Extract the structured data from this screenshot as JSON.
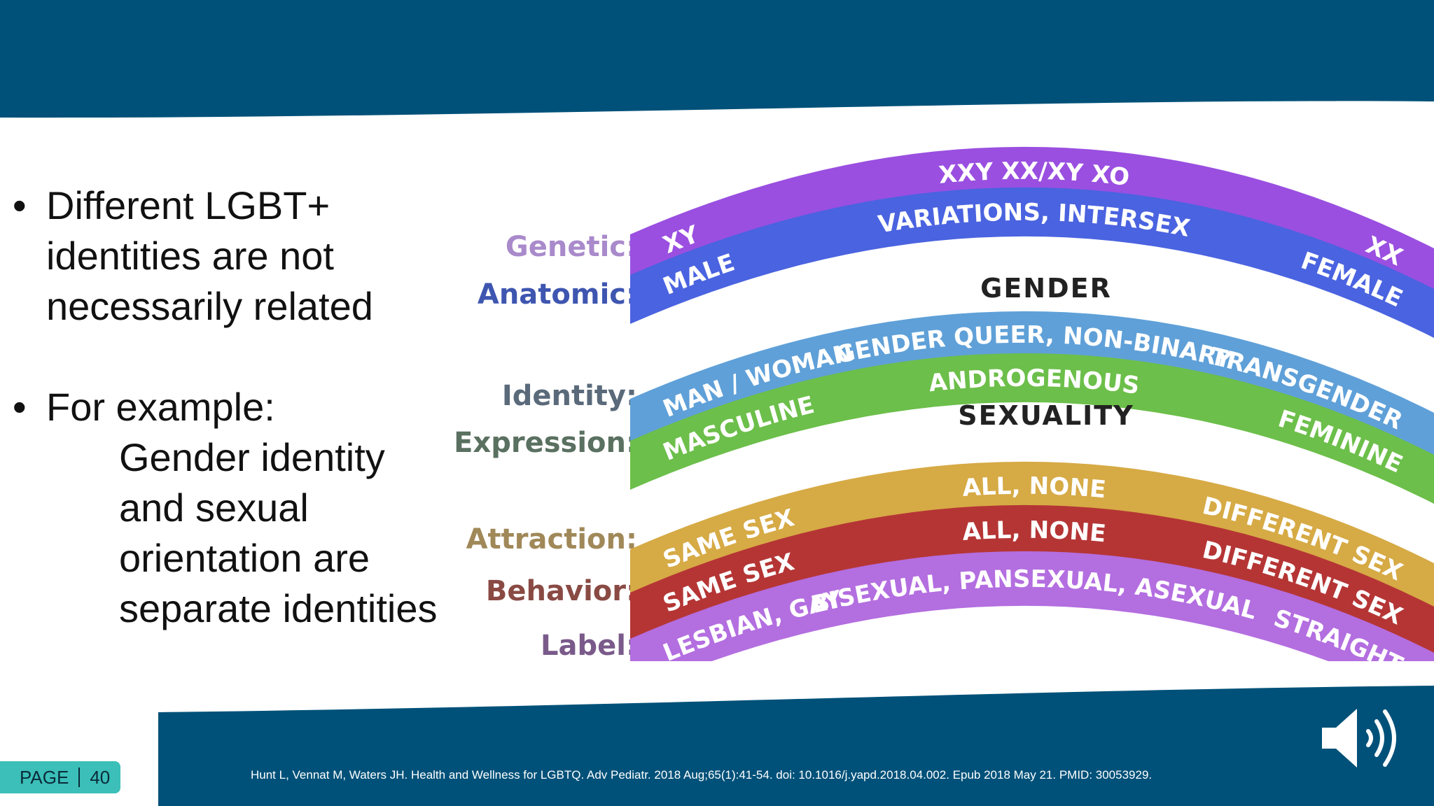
{
  "colors": {
    "header": "#005179",
    "footer": "#005179",
    "badge": "#3bbfb8"
  },
  "bullets": {
    "first": [
      "Different LGBT+",
      "identities are not",
      "necessarily related"
    ],
    "second_lead": "For example:",
    "second_sub": [
      "Gender identity",
      "and sexual",
      "orientation are",
      "separate identities"
    ]
  },
  "spectrum": {
    "row_labels": {
      "genetic": "Genetic:",
      "anatomic": "Anatomic:",
      "identity": "Identity:",
      "expression": "Expression:",
      "attraction": "Attraction:",
      "behavior": "Behavior:",
      "label": "Label:"
    },
    "headings": {
      "gender": "GENDER",
      "sexuality": "SEXUALITY"
    },
    "bands": {
      "genetic": {
        "left": "XY",
        "middle": "XXY XX/XY XO",
        "right": "XX",
        "color": "#9a4fe0"
      },
      "anatomic": {
        "left": "MALE",
        "middle": "VARIATIONS, INTERSEX",
        "right": "FEMALE",
        "color": "#4a63e0"
      },
      "identity": {
        "left": "MAN / WOMAN",
        "middle": "GENDER QUEER, NON-BINARY",
        "right": "TRANSGENDER",
        "color": "#5fa0d8"
      },
      "expression": {
        "left": "MASCULINE",
        "middle": "ANDROGENOUS",
        "right": "FEMININE",
        "color": "#6cbf4a"
      },
      "attraction": {
        "left": "SAME SEX",
        "middle": "ALL, NONE",
        "right": "DIFFERENT SEX",
        "color": "#d6aa45"
      },
      "behavior": {
        "left": "SAME SEX",
        "middle": "ALL, NONE",
        "right": "DIFFERENT SEX",
        "color": "#b53535"
      },
      "label": {
        "left": "LESBIAN, GAY",
        "middle": "BISEXUAL, PANSEXUAL, ASEXUAL",
        "right": "STRAIGHT",
        "color": "#b36ee0"
      }
    },
    "label_colors": {
      "genetic": "#a98acb",
      "anatomic": "#3e56b0",
      "identity": "#5a6a7a",
      "expression": "#5a7060",
      "attraction": "#a08858",
      "behavior": "#8a4a44",
      "label": "#7a5a8a"
    }
  },
  "footer": {
    "page_label": "PAGE",
    "page_number": "40",
    "citation": "Hunt L, Vennat M, Waters JH. Health and Wellness for LGBTQ. Adv Pediatr. 2018 Aug;65(1):41-54. doi: 10.1016/j.yapd.2018.04.002. Epub 2018 May 21. PMID: 30053929."
  },
  "icons": {
    "audio": "speaker-volume-icon"
  }
}
